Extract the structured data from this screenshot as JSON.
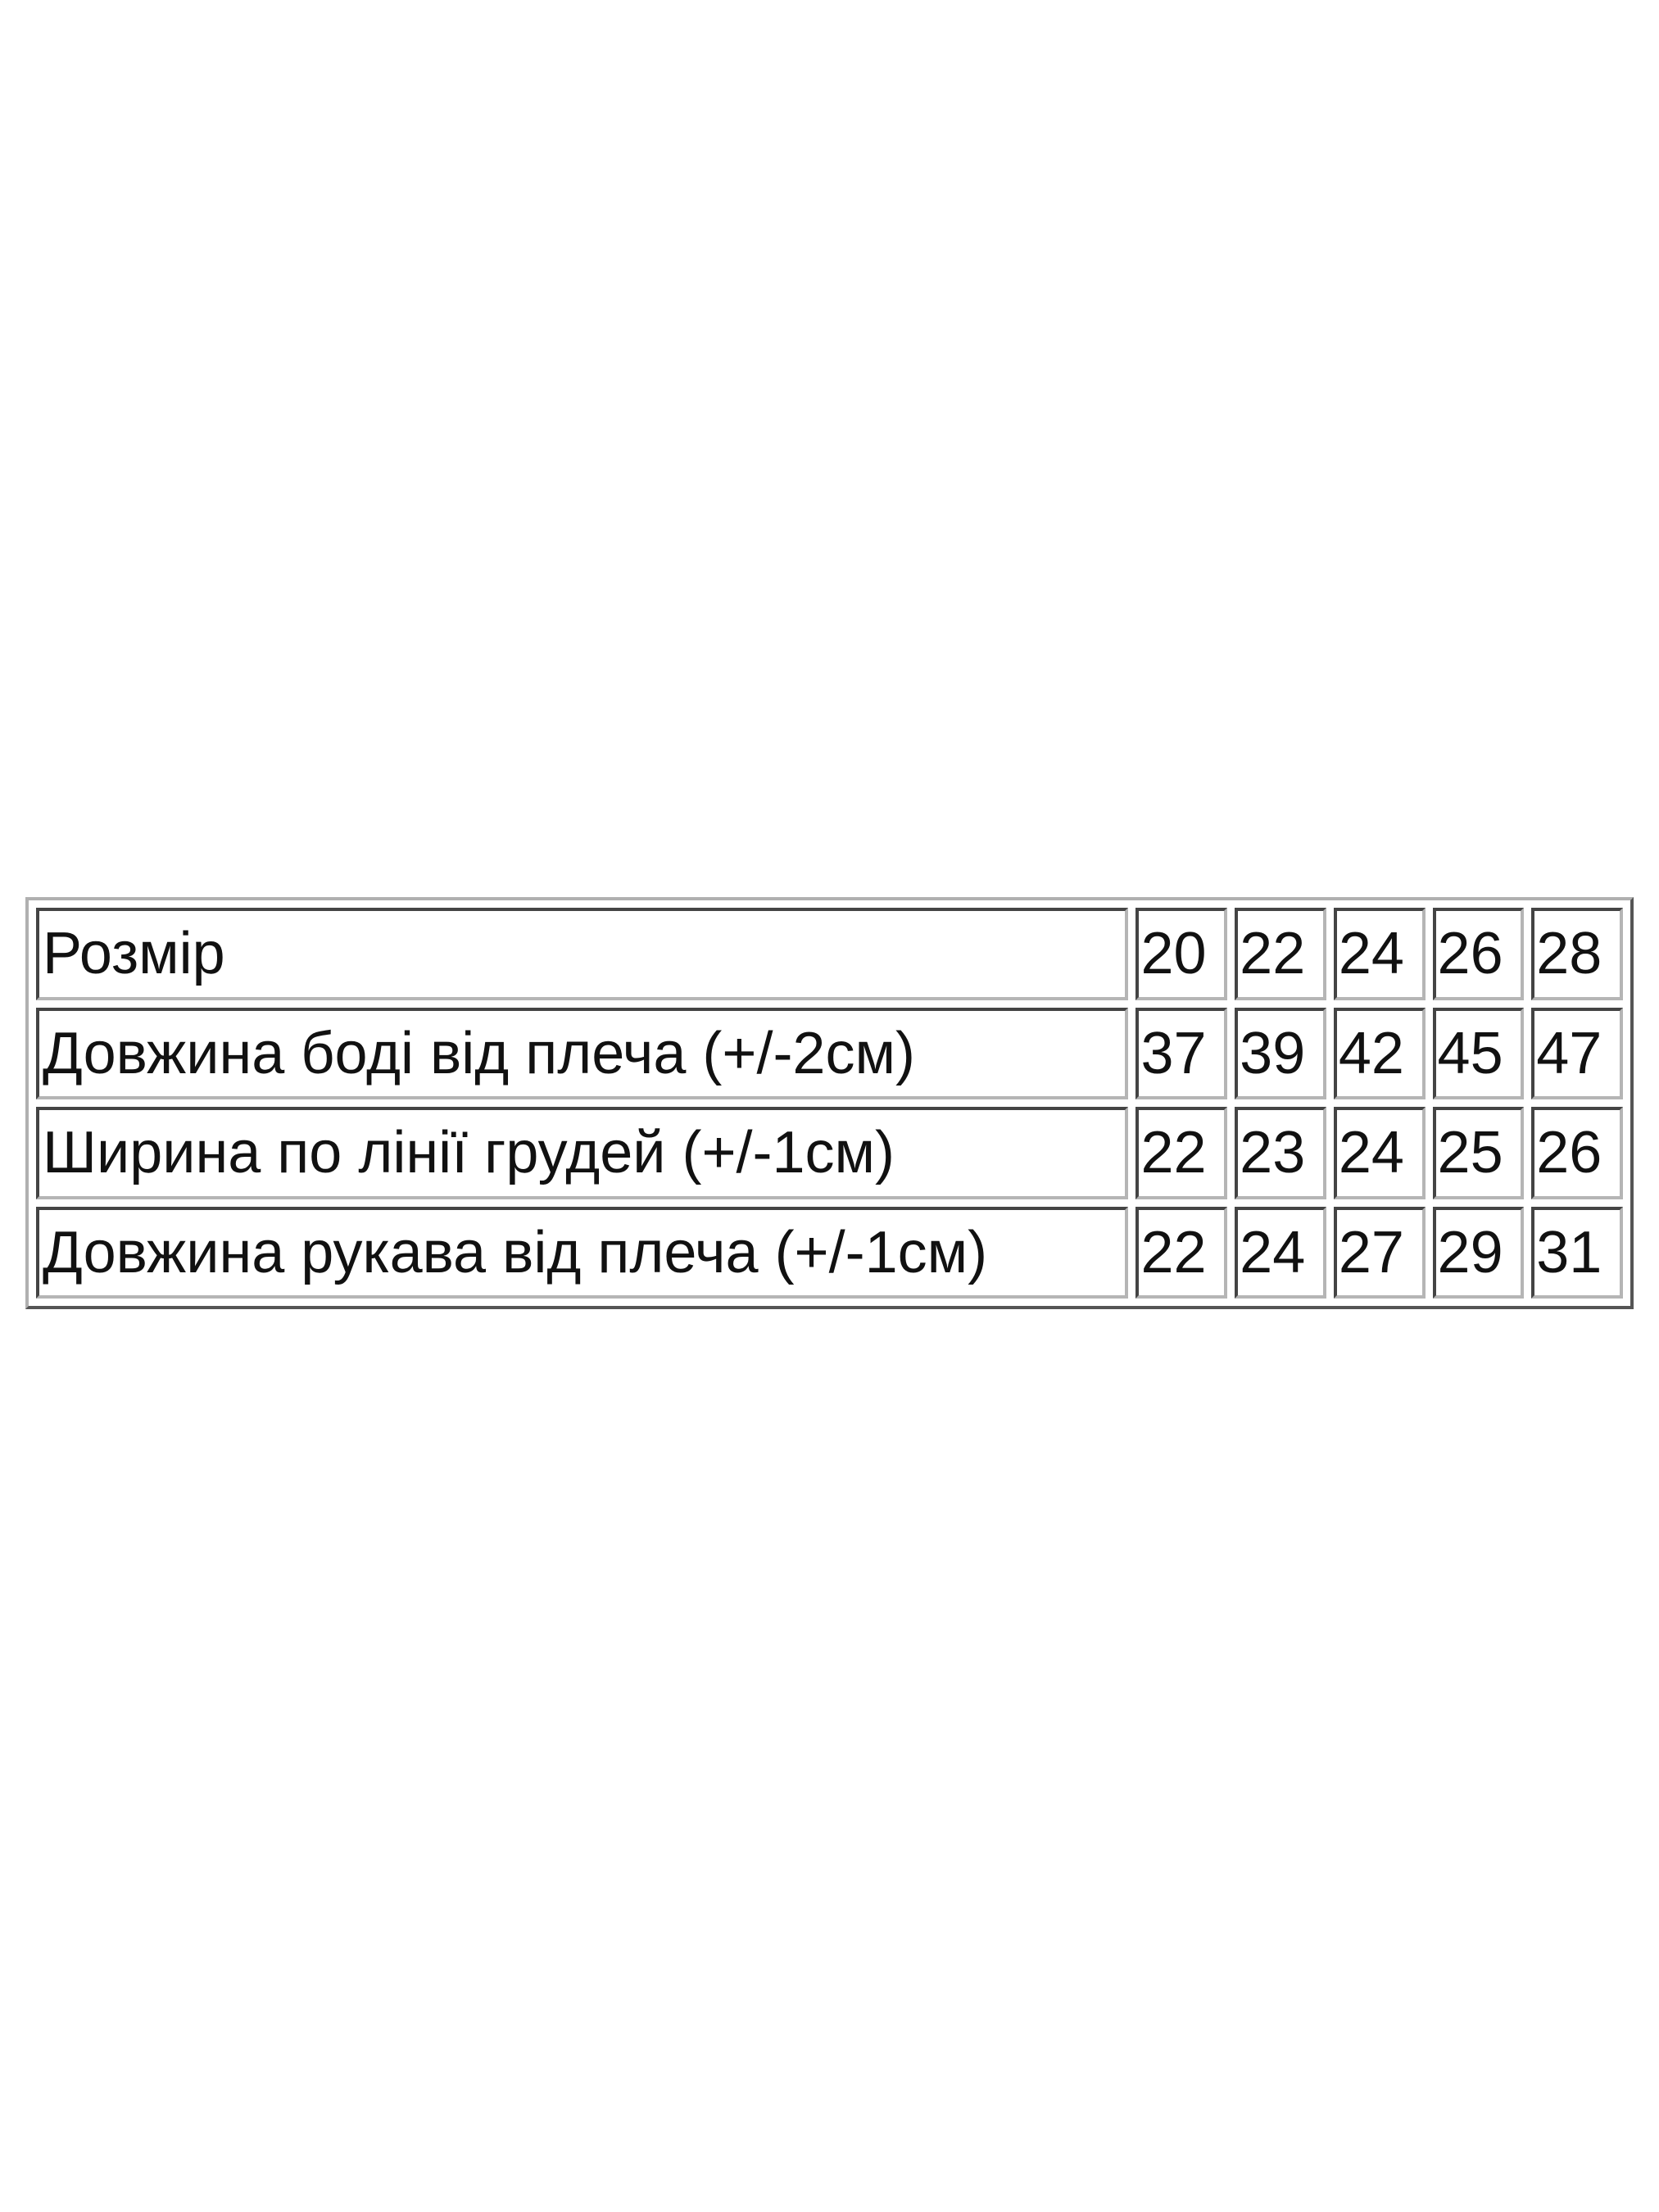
{
  "size_table": {
    "rows": [
      {
        "label": "Розмір",
        "values": [
          "20",
          "22",
          "24",
          "26",
          "28"
        ]
      },
      {
        "label": "Довжина боді від плеча (+/-2см)",
        "values": [
          "37",
          "39",
          "42",
          "45",
          "47"
        ]
      },
      {
        "label": "Ширина по лінії грудей (+/-1см)",
        "values": [
          "22",
          "23",
          "24",
          "25",
          "26"
        ]
      },
      {
        "label": "Довжина рукава від плеча (+/-1см)",
        "values": [
          "22",
          "24",
          "27",
          "29",
          "31"
        ]
      }
    ]
  }
}
